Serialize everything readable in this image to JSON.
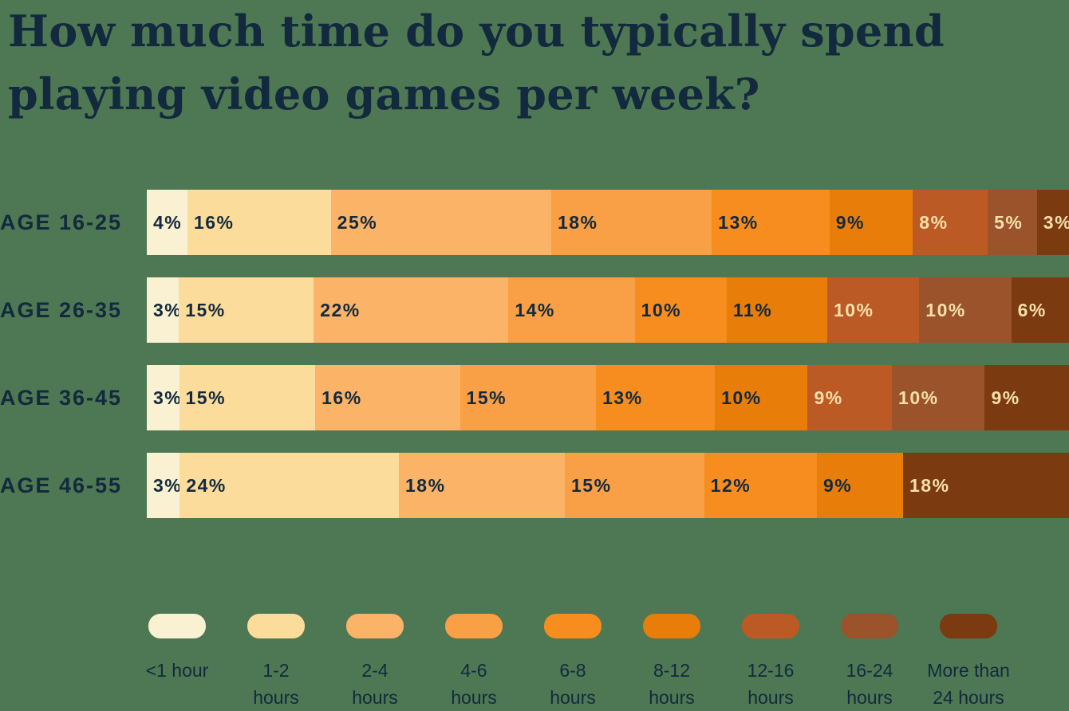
{
  "title": {
    "line1": "How much time do you typically spend",
    "line2": "playing video games per week?"
  },
  "colors": {
    "background": "#4d7853",
    "text_dark": "#13293d",
    "text_light": "#f6e0aa"
  },
  "chart_data": {
    "type": "bar",
    "stacked": true,
    "orientation": "horizontal",
    "title": "How much time do you typically spend playing video games per week?",
    "unit": "%",
    "legend_position": "bottom",
    "categories": [
      "AGE 16-25",
      "AGE 26-35",
      "AGE 36-45",
      "AGE 46-55"
    ],
    "series": [
      {
        "name": "<1 hour",
        "legend_lines": [
          "<1 hour"
        ],
        "color": "#faf0d2",
        "label_style": "dark",
        "values": [
          4,
          3,
          3,
          3
        ]
      },
      {
        "name": "1-2 hours",
        "legend_lines": [
          "1-2",
          "hours"
        ],
        "color": "#fcdc9a",
        "label_style": "dark",
        "values": [
          16,
          15,
          15,
          24
        ]
      },
      {
        "name": "2-4 hours",
        "legend_lines": [
          "2-4",
          "hours"
        ],
        "color": "#fab367",
        "label_style": "dark",
        "values": [
          25,
          22,
          16,
          18
        ]
      },
      {
        "name": "4-6 hours",
        "legend_lines": [
          "4-6",
          "hours"
        ],
        "color": "#f99f45",
        "label_style": "dark",
        "values": [
          18,
          14,
          15,
          15
        ]
      },
      {
        "name": "6-8 hours",
        "legend_lines": [
          "6-8",
          "hours"
        ],
        "color": "#f78c1f",
        "label_style": "dark",
        "values": [
          13,
          10,
          13,
          12
        ]
      },
      {
        "name": "8-12 hours",
        "legend_lines": [
          "8-12",
          "hours"
        ],
        "color": "#e87d0a",
        "label_style": "dark",
        "values": [
          9,
          11,
          10,
          9
        ]
      },
      {
        "name": "12-16 hours",
        "legend_lines": [
          "12-16",
          "hours"
        ],
        "color": "#bc5a25",
        "label_style": "light",
        "values": [
          8,
          10,
          9,
          0
        ]
      },
      {
        "name": "16-24 hours",
        "legend_lines": [
          "16-24",
          "hours"
        ],
        "color": "#9a532b",
        "label_style": "light",
        "values": [
          5,
          10,
          10,
          0
        ]
      },
      {
        "name": "More than 24 hours",
        "legend_lines": [
          "More than",
          "24 hours"
        ],
        "color": "#7b3a10",
        "label_style": "light",
        "values": [
          3,
          6,
          9,
          18
        ]
      }
    ]
  }
}
